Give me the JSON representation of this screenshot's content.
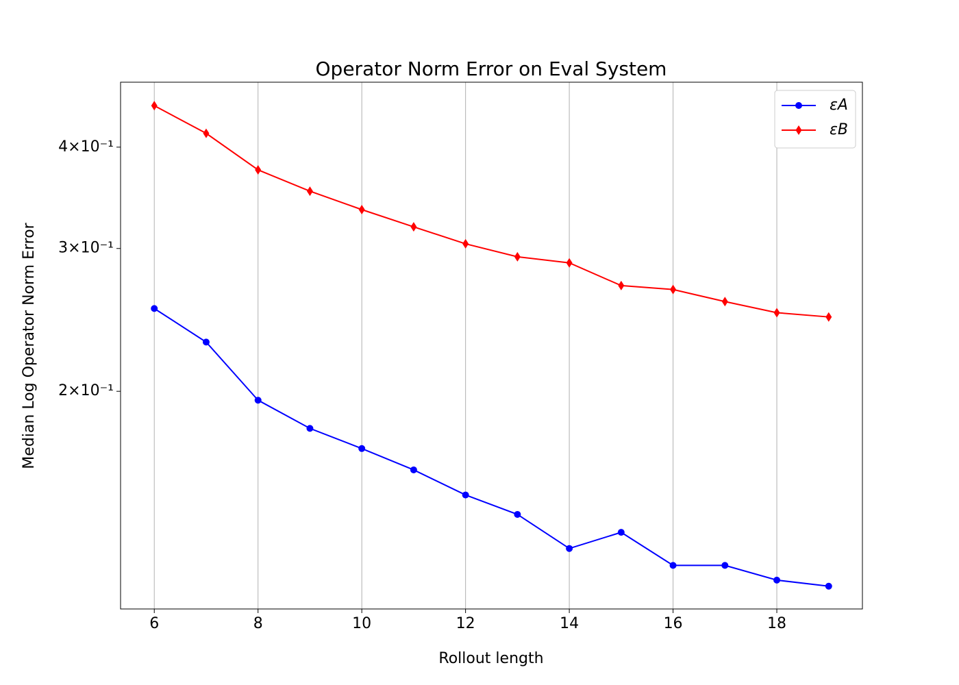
{
  "chart_data": {
    "type": "line",
    "title": "Operator Norm Error on Eval System",
    "x_label": "Rollout length",
    "y_label": "Median Log Operator Norm Error",
    "x": [
      6,
      7,
      8,
      9,
      10,
      11,
      12,
      13,
      14,
      15,
      16,
      17,
      18,
      19
    ],
    "series": [
      {
        "name": "εA",
        "color": "#0000ff",
        "marker": "circle",
        "values": [
          0.253,
          0.23,
          0.195,
          0.18,
          0.17,
          0.16,
          0.149,
          0.141,
          0.128,
          0.134,
          0.122,
          0.122,
          0.117,
          0.115
        ]
      },
      {
        "name": "εB",
        "color": "#ff0000",
        "marker": "diamond",
        "values": [
          0.45,
          0.416,
          0.375,
          0.353,
          0.335,
          0.319,
          0.304,
          0.293,
          0.288,
          0.27,
          0.267,
          0.258,
          0.25,
          0.247
        ]
      }
    ],
    "xlim": [
      5.35,
      19.65
    ],
    "xticks": [
      6,
      8,
      10,
      12,
      14,
      16,
      18
    ],
    "ylim": [
      0.1078,
      0.481
    ],
    "yscale": "log",
    "yticks": [
      {
        "value": 0.2,
        "label": "2×10⁻¹"
      },
      {
        "value": 0.3,
        "label": "3×10⁻¹"
      },
      {
        "value": 0.4,
        "label": "4×10⁻¹"
      }
    ],
    "grid": "x",
    "legend": "upper right"
  }
}
